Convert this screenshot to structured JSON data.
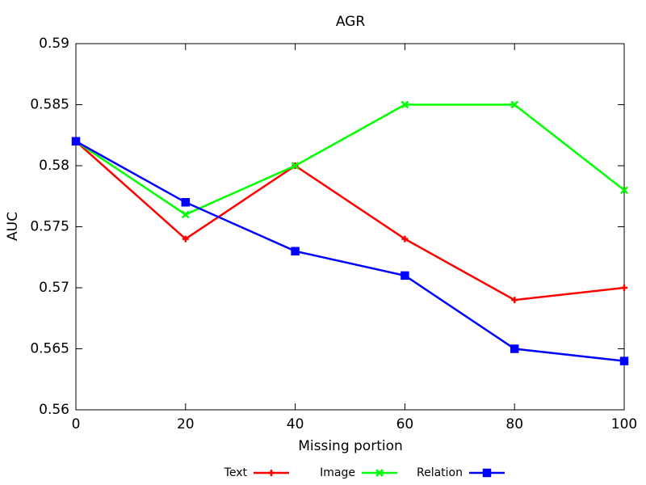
{
  "chart_data": {
    "type": "line",
    "title": "AGR",
    "x_label": "Missing portion",
    "y_label": "AUC",
    "x": [
      0,
      20,
      40,
      60,
      80,
      100
    ],
    "series": [
      {
        "name": "Text",
        "color": "#ff0000",
        "marker": "plus",
        "values": [
          0.582,
          0.574,
          0.58,
          0.574,
          0.569,
          0.57
        ]
      },
      {
        "name": "Image",
        "color": "#00ff00",
        "marker": "cross",
        "values": [
          0.582,
          0.576,
          0.58,
          0.585,
          0.585,
          0.578
        ]
      },
      {
        "name": "Relation",
        "color": "#0000ff",
        "marker": "box-cross",
        "values": [
          0.582,
          0.577,
          0.573,
          0.571,
          0.565,
          0.564
        ]
      }
    ],
    "xlim": [
      0,
      100
    ],
    "xticks": [
      0,
      20,
      40,
      60,
      80,
      100
    ],
    "ylim": [
      0.56,
      0.59
    ],
    "yticks": [
      0.56,
      0.565,
      0.57,
      0.575,
      0.58,
      0.585,
      0.59
    ],
    "grid": false,
    "legend": "bottom"
  }
}
